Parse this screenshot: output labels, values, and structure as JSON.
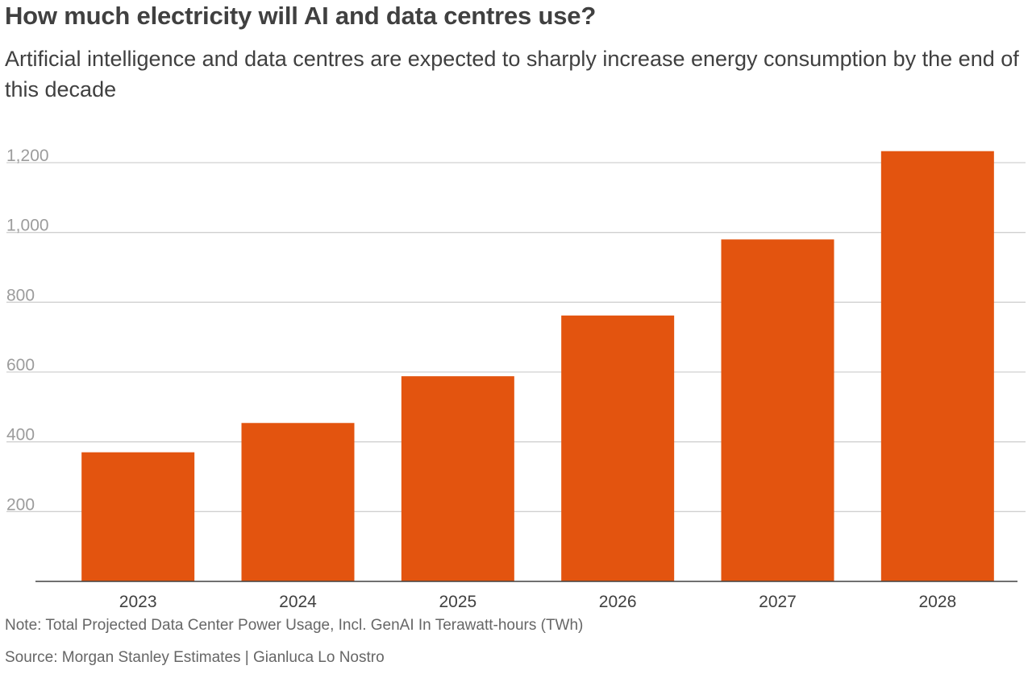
{
  "header": {
    "title": "How much electricity will AI and data centres use?",
    "subtitle": "Artificial intelligence and data centres are expected to sharply increase energy consumption by the end of this decade"
  },
  "footer": {
    "note": "Note: Total Projected Data Center Power Usage, Incl. GenAI In Terawatt-hours (TWh)",
    "source": "Source: Morgan Stanley Estimates | Gianluca Lo Nostro"
  },
  "chart_data": {
    "type": "bar",
    "title": "How much electricity will AI and data centres use?",
    "categories": [
      "2023",
      "2024",
      "2025",
      "2026",
      "2027",
      "2028"
    ],
    "values": [
      370,
      454,
      588,
      762,
      980,
      1233
    ],
    "unit": "TWh",
    "xlabel": "",
    "ylabel": "",
    "ylim": [
      0,
      1200
    ],
    "yticks": [
      200,
      400,
      600,
      800,
      1000,
      1200
    ],
    "ytick_labels": [
      "200",
      "400",
      "600",
      "800",
      "1,000",
      "1,200"
    ],
    "grid": true,
    "legend": "none",
    "bar_color": "#e3540f",
    "grid_color": "#d0d0d0",
    "axis_color": "#404040"
  }
}
